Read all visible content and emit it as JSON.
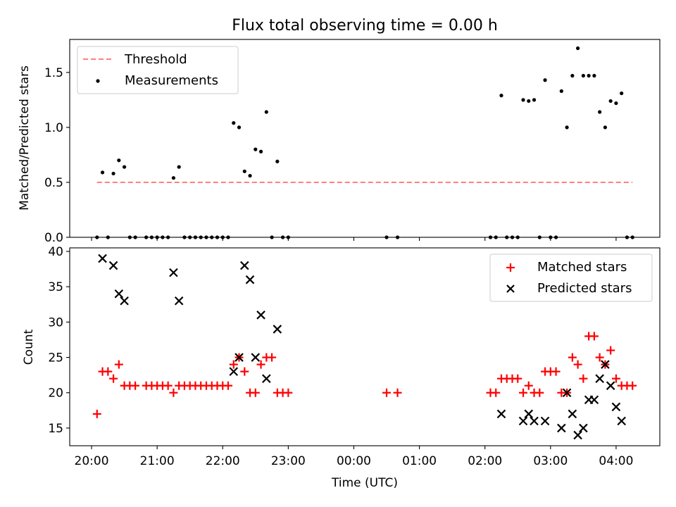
{
  "chart_data": [
    {
      "type": "scatter",
      "title": "Flux total observing time = 0.00 h",
      "xlabel": "",
      "ylabel": "Matched/Predicted stars",
      "ylim": [
        0,
        1.8
      ],
      "y_ticks": [
        0.0,
        0.5,
        1.0,
        1.5
      ],
      "y_tick_labels": [
        "0.0",
        "0.5",
        "1.0",
        "1.5"
      ],
      "legend": "top-left",
      "threshold": {
        "name": "Threshold",
        "y": 0.5,
        "x_start": "20:05",
        "x_end": "04:15",
        "color": "#ff7f7f"
      },
      "series": [
        {
          "name": "Measurements",
          "color": "#000000",
          "points": [
            [
              "20:05",
              0
            ],
            [
              "20:10",
              0.59
            ],
            [
              "20:15",
              0
            ],
            [
              "20:20",
              0.58
            ],
            [
              "20:25",
              0.7
            ],
            [
              "20:30",
              0.64
            ],
            [
              "20:35",
              0
            ],
            [
              "20:40",
              0
            ],
            [
              "20:50",
              0
            ],
            [
              "20:55",
              0
            ],
            [
              "21:00",
              0
            ],
            [
              "21:05",
              0
            ],
            [
              "21:10",
              0
            ],
            [
              "21:15",
              0.54
            ],
            [
              "21:20",
              0.64
            ],
            [
              "21:25",
              0
            ],
            [
              "21:30",
              0
            ],
            [
              "21:35",
              0
            ],
            [
              "21:40",
              0
            ],
            [
              "21:45",
              0
            ],
            [
              "21:50",
              0
            ],
            [
              "21:55",
              0
            ],
            [
              "22:00",
              0
            ],
            [
              "22:05",
              0
            ],
            [
              "22:10",
              1.04
            ],
            [
              "22:15",
              1.0
            ],
            [
              "22:20",
              0.6
            ],
            [
              "22:25",
              0.56
            ],
            [
              "22:30",
              0.8
            ],
            [
              "22:35",
              0.78
            ],
            [
              "22:40",
              1.14
            ],
            [
              "22:45",
              0
            ],
            [
              "22:50",
              0.69
            ],
            [
              "22:55",
              0
            ],
            [
              "23:00",
              0
            ],
            [
              "00:30",
              0
            ],
            [
              "00:40",
              0
            ],
            [
              "02:05",
              0
            ],
            [
              "02:10",
              0
            ],
            [
              "02:15",
              1.29
            ],
            [
              "02:20",
              0
            ],
            [
              "02:25",
              0
            ],
            [
              "02:30",
              0
            ],
            [
              "02:35",
              1.25
            ],
            [
              "02:40",
              1.24
            ],
            [
              "02:45",
              1.25
            ],
            [
              "02:50",
              0
            ],
            [
              "02:55",
              1.43
            ],
            [
              "03:00",
              0
            ],
            [
              "03:05",
              0
            ],
            [
              "03:10",
              1.33
            ],
            [
              "03:15",
              1.0
            ],
            [
              "03:20",
              1.47
            ],
            [
              "03:25",
              1.72
            ],
            [
              "03:30",
              1.47
            ],
            [
              "03:35",
              1.47
            ],
            [
              "03:40",
              1.47
            ],
            [
              "03:45",
              1.14
            ],
            [
              "03:50",
              1.0
            ],
            [
              "03:55",
              1.24
            ],
            [
              "04:00",
              1.22
            ],
            [
              "04:05",
              1.31
            ],
            [
              "04:10",
              0
            ],
            [
              "04:15",
              0
            ]
          ]
        }
      ]
    },
    {
      "type": "scatter",
      "title": "",
      "xlabel": "Time (UTC)",
      "ylabel": "Count",
      "ylim": [
        12.5,
        40.5
      ],
      "y_ticks": [
        15,
        20,
        25,
        30,
        35,
        40
      ],
      "y_tick_labels": [
        "15",
        "20",
        "25",
        "30",
        "35",
        "40"
      ],
      "x_range": [
        "19:40",
        "04:40"
      ],
      "x_ticks": [
        "20:00",
        "21:00",
        "22:00",
        "23:00",
        "00:00",
        "01:00",
        "02:00",
        "03:00",
        "04:00"
      ],
      "legend": "top-right",
      "series": [
        {
          "name": "Matched stars",
          "marker": "plus",
          "color": "#ff0000",
          "points": [
            [
              "20:05",
              17
            ],
            [
              "20:10",
              23
            ],
            [
              "20:15",
              23
            ],
            [
              "20:20",
              22
            ],
            [
              "20:25",
              24
            ],
            [
              "20:30",
              21
            ],
            [
              "20:35",
              21
            ],
            [
              "20:40",
              21
            ],
            [
              "20:50",
              21
            ],
            [
              "20:55",
              21
            ],
            [
              "21:00",
              21
            ],
            [
              "21:05",
              21
            ],
            [
              "21:10",
              21
            ],
            [
              "21:15",
              20
            ],
            [
              "21:20",
              21
            ],
            [
              "21:25",
              21
            ],
            [
              "21:30",
              21
            ],
            [
              "21:35",
              21
            ],
            [
              "21:40",
              21
            ],
            [
              "21:45",
              21
            ],
            [
              "21:50",
              21
            ],
            [
              "21:55",
              21
            ],
            [
              "22:00",
              21
            ],
            [
              "22:05",
              21
            ],
            [
              "22:10",
              24
            ],
            [
              "22:15",
              25
            ],
            [
              "22:20",
              23
            ],
            [
              "22:25",
              20
            ],
            [
              "22:30",
              20
            ],
            [
              "22:35",
              24
            ],
            [
              "22:40",
              25
            ],
            [
              "22:45",
              25
            ],
            [
              "22:50",
              20
            ],
            [
              "22:55",
              20
            ],
            [
              "23:00",
              20
            ],
            [
              "00:30",
              20
            ],
            [
              "00:40",
              20
            ],
            [
              "02:05",
              20
            ],
            [
              "02:10",
              20
            ],
            [
              "02:15",
              22
            ],
            [
              "02:20",
              22
            ],
            [
              "02:25",
              22
            ],
            [
              "02:30",
              22
            ],
            [
              "02:35",
              20
            ],
            [
              "02:40",
              21
            ],
            [
              "02:45",
              20
            ],
            [
              "02:50",
              20
            ],
            [
              "02:55",
              23
            ],
            [
              "03:00",
              23
            ],
            [
              "03:05",
              23
            ],
            [
              "03:10",
              20
            ],
            [
              "03:15",
              20
            ],
            [
              "03:20",
              25
            ],
            [
              "03:25",
              24
            ],
            [
              "03:30",
              22
            ],
            [
              "03:35",
              28
            ],
            [
              "03:40",
              28
            ],
            [
              "03:45",
              25
            ],
            [
              "03:50",
              24
            ],
            [
              "03:55",
              26
            ],
            [
              "04:00",
              22
            ],
            [
              "04:05",
              21
            ],
            [
              "04:10",
              21
            ],
            [
              "04:15",
              21
            ]
          ]
        },
        {
          "name": "Predicted stars",
          "marker": "x",
          "color": "#000000",
          "points": [
            [
              "20:10",
              39
            ],
            [
              "20:20",
              38
            ],
            [
              "20:25",
              34
            ],
            [
              "20:30",
              33
            ],
            [
              "21:15",
              37
            ],
            [
              "21:20",
              33
            ],
            [
              "22:10",
              23
            ],
            [
              "22:15",
              25
            ],
            [
              "22:20",
              38
            ],
            [
              "22:25",
              36
            ],
            [
              "22:30",
              25
            ],
            [
              "22:35",
              31
            ],
            [
              "22:40",
              22
            ],
            [
              "22:50",
              29
            ],
            [
              "02:15",
              17
            ],
            [
              "02:35",
              16
            ],
            [
              "02:40",
              17
            ],
            [
              "02:45",
              16
            ],
            [
              "02:55",
              16
            ],
            [
              "03:10",
              15
            ],
            [
              "03:15",
              20
            ],
            [
              "03:20",
              17
            ],
            [
              "03:25",
              14
            ],
            [
              "03:30",
              15
            ],
            [
              "03:35",
              19
            ],
            [
              "03:40",
              19
            ],
            [
              "03:45",
              22
            ],
            [
              "03:50",
              24
            ],
            [
              "03:55",
              21
            ],
            [
              "04:00",
              18
            ],
            [
              "04:05",
              16
            ]
          ]
        }
      ]
    }
  ]
}
